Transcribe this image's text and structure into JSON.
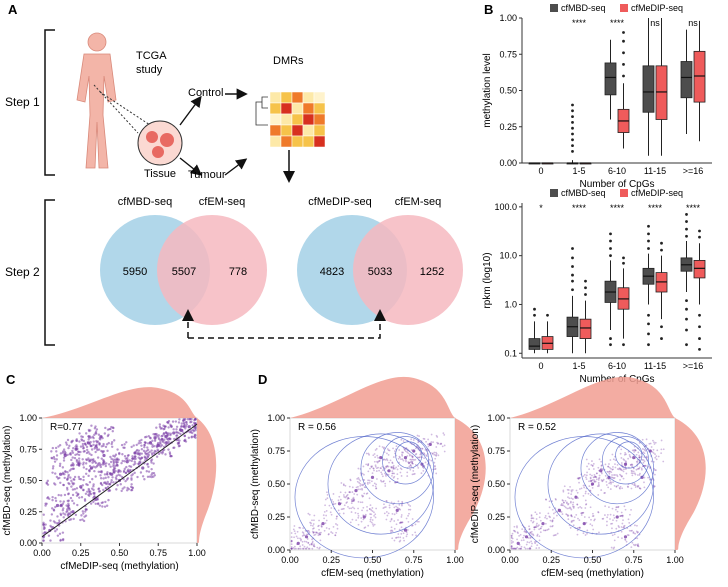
{
  "colors": {
    "dark_box": "#4d4d4d",
    "red_box": "#ef5b5b",
    "venn_blue": "#a9d3e8",
    "venn_pink": "#f6b8c0",
    "scatter": "#7b3fa8",
    "density": "#f19d92",
    "contour": "#4f63c8",
    "density_line": "#7a2a2a"
  },
  "panel_labels": {
    "a": "A",
    "b": "B",
    "c": "C",
    "d": "D"
  },
  "panel_a": {
    "step1": "Step 1",
    "step2": "Step 2",
    "tcga_line1": "TCGA",
    "tcga_line2": "study",
    "tissue": "Tissue",
    "control": "Control",
    "tumour": "Tumour",
    "dmrs": "DMRs",
    "venn_left": {
      "label_a": "cfMBD-seq",
      "label_b": "cfEM-seq",
      "only_a": "5950",
      "overlap": "5507",
      "only_b": "778"
    },
    "venn_right": {
      "label_a": "cfMeDIP-seq",
      "label_b": "cfEM-seq",
      "only_a": "4823",
      "overlap": "5033",
      "only_b": "1252"
    }
  },
  "chart_data": [
    {
      "id": "b_top",
      "type": "box",
      "xlabel": "Number of CpGs",
      "ylabel": "methylation level",
      "legend": [
        "cfMBD-seq",
        "cfMeDIP-seq"
      ],
      "categories": [
        "0",
        "1-5",
        "6-10",
        "11-15",
        ">=16"
      ],
      "ylim": [
        0,
        1
      ],
      "yticks": [
        "0.00",
        "0.25",
        "0.50",
        "0.75",
        "1.00"
      ],
      "significance": [
        "",
        "****",
        "****",
        "ns",
        "ns"
      ],
      "series": [
        {
          "name": "cfMBD-seq",
          "boxes": [
            {
              "min": 0,
              "q1": 0,
              "med": 0,
              "q3": 0,
              "max": 0
            },
            {
              "min": 0,
              "q1": 0,
              "med": 0,
              "q3": 0,
              "max": 0.02,
              "outliers": [
                0.08,
                0.12,
                0.16,
                0.2,
                0.24,
                0.28,
                0.32,
                0.36,
                0.4
              ]
            },
            {
              "min": 0.3,
              "q1": 0.47,
              "med": 0.59,
              "q3": 0.69,
              "max": 0.85
            },
            {
              "min": 0.05,
              "q1": 0.35,
              "med": 0.49,
              "q3": 0.67,
              "max": 1.0
            },
            {
              "min": 0.2,
              "q1": 0.45,
              "med": 0.59,
              "q3": 0.7,
              "max": 0.92
            }
          ]
        },
        {
          "name": "cfMeDIP-seq",
          "boxes": [
            {
              "min": 0,
              "q1": 0,
              "med": 0,
              "q3": 0,
              "max": 0
            },
            {
              "min": 0,
              "q1": 0,
              "med": 0,
              "q3": 0,
              "max": 0
            },
            {
              "min": 0.1,
              "q1": 0.21,
              "med": 0.29,
              "q3": 0.37,
              "max": 0.55,
              "outliers": [
                0.6,
                0.68,
                0.76,
                0.84,
                0.9
              ]
            },
            {
              "min": 0.05,
              "q1": 0.3,
              "med": 0.49,
              "q3": 0.67,
              "max": 1.0
            },
            {
              "min": 0.15,
              "q1": 0.42,
              "med": 0.6,
              "q3": 0.77,
              "max": 0.98
            }
          ]
        }
      ]
    },
    {
      "id": "b_bottom",
      "type": "box",
      "xlabel": "Number of CpGs",
      "ylabel": "rpkm (log10)",
      "legend": [
        "cfMBD-seq",
        "cfMeDIP-seq"
      ],
      "categories": [
        "0",
        "1-5",
        "6-10",
        "11-15",
        ">=16"
      ],
      "ylim": [
        0.08,
        120
      ],
      "yticks": [
        "0.1",
        "1.0",
        "10.0",
        "100.0"
      ],
      "significance": [
        "*",
        "****",
        "****",
        "****",
        "****"
      ],
      "series": [
        {
          "name": "cfMBD-seq",
          "boxes": [
            {
              "min": 0.1,
              "q1": 0.12,
              "med": 0.14,
              "q3": 0.2,
              "max": 0.45,
              "outliers": [
                0.6,
                0.8
              ]
            },
            {
              "min": 0.1,
              "q1": 0.22,
              "med": 0.35,
              "q3": 0.55,
              "max": 1.5,
              "outliers": [
                2,
                3,
                4,
                6,
                9,
                14
              ]
            },
            {
              "min": 0.3,
              "q1": 1.1,
              "med": 1.8,
              "q3": 3.0,
              "max": 8,
              "outliers": [
                10,
                14,
                20,
                28,
                0.2,
                0.15
              ]
            },
            {
              "min": 1,
              "q1": 2.6,
              "med": 3.8,
              "q3": 5.5,
              "max": 11,
              "outliers": [
                14,
                20,
                28,
                40,
                0.6,
                0.4,
                0.25,
                0.15
              ]
            },
            {
              "min": 1.8,
              "q1": 4.8,
              "med": 6.5,
              "q3": 9,
              "max": 20,
              "outliers": [
                25,
                35,
                50,
                70,
                1.2,
                0.8,
                0.5,
                0.3,
                0.15
              ]
            }
          ]
        },
        {
          "name": "cfMeDIP-seq",
          "boxes": [
            {
              "min": 0.1,
              "q1": 0.12,
              "med": 0.16,
              "q3": 0.22,
              "max": 0.45,
              "outliers": [
                0.6
              ]
            },
            {
              "min": 0.1,
              "q1": 0.2,
              "med": 0.33,
              "q3": 0.5,
              "max": 1.2,
              "outliers": [
                1.6,
                2.2,
                3
              ]
            },
            {
              "min": 0.2,
              "q1": 0.8,
              "med": 1.3,
              "q3": 2.2,
              "max": 5.5,
              "outliers": [
                7,
                9,
                0.15
              ]
            },
            {
              "min": 0.5,
              "q1": 1.8,
              "med": 2.9,
              "q3": 4.5,
              "max": 10,
              "outliers": [
                13,
                18,
                0.35,
                0.2
              ]
            },
            {
              "min": 1,
              "q1": 3.5,
              "med": 5.5,
              "q3": 8,
              "max": 18,
              "outliers": [
                24,
                32,
                0.6,
                0.35,
                0.2,
                0.12
              ]
            }
          ]
        }
      ]
    },
    {
      "id": "c",
      "type": "scatter",
      "xlabel": "cfMeDIP-seq (methylation)",
      "ylabel": "cfMBD-seq (methylation)",
      "annotation": "R=0.77",
      "xlim": [
        0,
        1
      ],
      "ylim": [
        0,
        1
      ],
      "xticks": [
        "0.00",
        "0.25",
        "0.50",
        "0.75",
        "1.00"
      ],
      "yticks": [
        "0.00",
        "0.25",
        "0.50",
        "0.75",
        "1.00"
      ],
      "regression": [
        [
          0,
          0.05
        ],
        [
          1,
          0.95
        ]
      ],
      "points": [
        [
          0.05,
          0.1
        ],
        [
          0.1,
          0.3
        ],
        [
          0.12,
          0.55
        ],
        [
          0.15,
          0.7
        ],
        [
          0.2,
          0.25
        ],
        [
          0.22,
          0.75
        ],
        [
          0.25,
          0.45
        ],
        [
          0.3,
          0.8
        ],
        [
          0.32,
          0.6
        ],
        [
          0.35,
          0.35
        ],
        [
          0.38,
          0.85
        ],
        [
          0.4,
          0.7
        ],
        [
          0.45,
          0.55
        ],
        [
          0.5,
          0.5
        ],
        [
          0.55,
          0.65
        ],
        [
          0.6,
          0.72
        ],
        [
          0.65,
          0.6
        ],
        [
          0.7,
          0.8
        ],
        [
          0.75,
          0.78
        ],
        [
          0.8,
          0.85
        ],
        [
          0.85,
          0.88
        ],
        [
          0.9,
          0.9
        ],
        [
          0.95,
          0.93
        ]
      ]
    },
    {
      "id": "d_left",
      "type": "scatter",
      "xlabel": "cfEM-seq (methylation)",
      "ylabel": "cfMBD-seq (methylation)",
      "annotation": "R = 0.56",
      "xlim": [
        0,
        1
      ],
      "ylim": [
        0,
        1
      ],
      "xticks": [
        "0.00",
        "0.25",
        "0.50",
        "0.75",
        "1.00"
      ],
      "yticks": [
        "0.00",
        "0.25",
        "0.50",
        "0.75",
        "1.00"
      ],
      "points": [
        [
          0.05,
          0.05
        ],
        [
          0.1,
          0.1
        ],
        [
          0.2,
          0.2
        ],
        [
          0.3,
          0.35
        ],
        [
          0.4,
          0.45
        ],
        [
          0.5,
          0.55
        ],
        [
          0.6,
          0.6
        ],
        [
          0.7,
          0.7
        ],
        [
          0.75,
          0.75
        ],
        [
          0.8,
          0.65
        ],
        [
          0.85,
          0.8
        ],
        [
          0.65,
          0.3
        ],
        [
          0.7,
          0.15
        ],
        [
          0.55,
          0.7
        ],
        [
          0.45,
          0.25
        ]
      ]
    },
    {
      "id": "d_right",
      "type": "scatter",
      "xlabel": "cfEM-seq (methylation)",
      "ylabel": "cfMeDIP-seq (methylation)",
      "annotation": "R = 0.52",
      "xlim": [
        0,
        1
      ],
      "ylim": [
        0,
        1
      ],
      "xticks": [
        "0.00",
        "0.25",
        "0.50",
        "0.75",
        "1.00"
      ],
      "yticks": [
        "0.00",
        "0.25",
        "0.50",
        "0.75",
        "1.00"
      ],
      "points": [
        [
          0.05,
          0.05
        ],
        [
          0.1,
          0.1
        ],
        [
          0.2,
          0.2
        ],
        [
          0.3,
          0.3
        ],
        [
          0.4,
          0.4
        ],
        [
          0.5,
          0.5
        ],
        [
          0.6,
          0.55
        ],
        [
          0.7,
          0.65
        ],
        [
          0.75,
          0.7
        ],
        [
          0.8,
          0.55
        ],
        [
          0.85,
          0.75
        ],
        [
          0.65,
          0.25
        ],
        [
          0.7,
          0.1
        ],
        [
          0.55,
          0.6
        ],
        [
          0.45,
          0.2
        ]
      ]
    }
  ]
}
